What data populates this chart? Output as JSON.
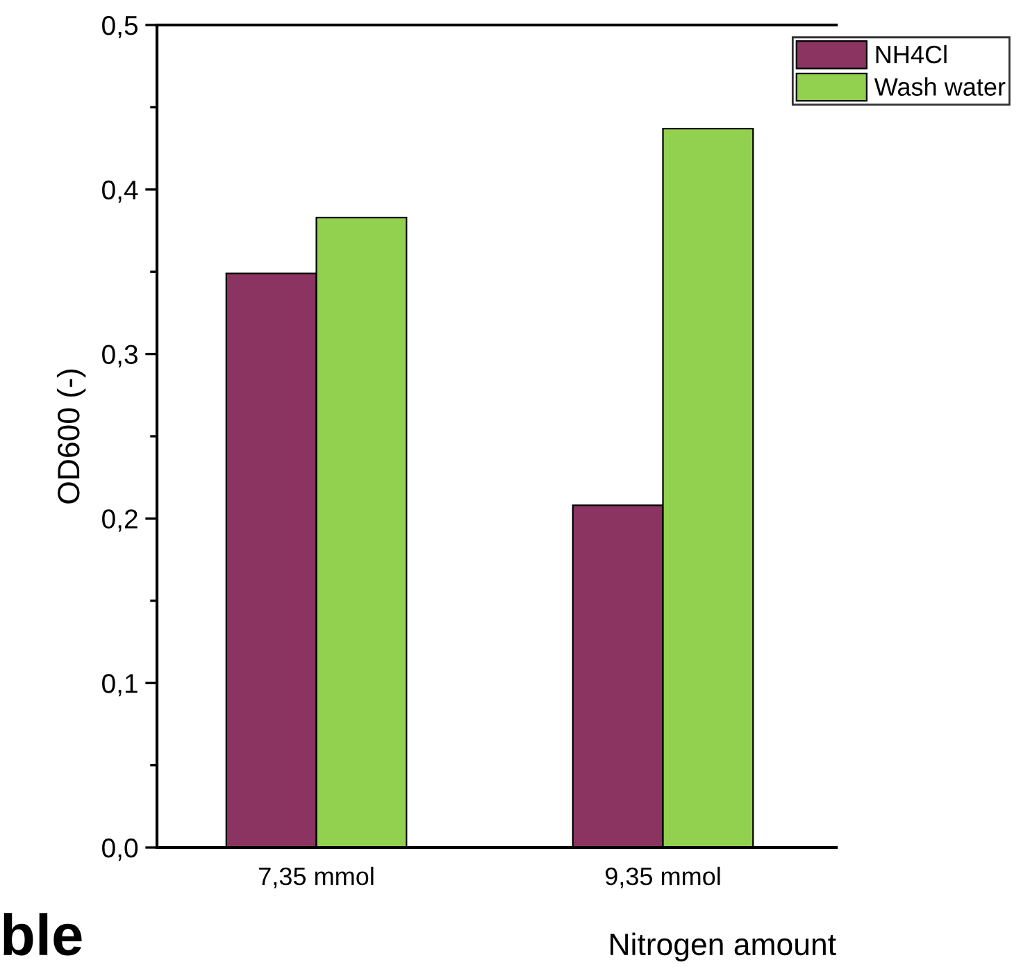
{
  "chart_data": {
    "type": "bar",
    "xlabel": "Nitrogen amount",
    "ylabel": "OD600 (-)",
    "categories": [
      "7,35 mmol",
      "9,35 mmol"
    ],
    "series": [
      {
        "name": "NH4Cl",
        "color": "#8b3462",
        "values": [
          0.349,
          0.208
        ]
      },
      {
        "name": "Wash water",
        "color": "#92d050",
        "values": [
          0.383,
          0.437
        ]
      }
    ],
    "ylim": [
      0,
      0.5
    ],
    "yticks": [
      {
        "value": 0,
        "label": "0,0"
      },
      {
        "value": 0.1,
        "label": "0,1"
      },
      {
        "value": 0.2,
        "label": "0,2"
      },
      {
        "value": 0.3,
        "label": "0,3"
      },
      {
        "value": 0.4,
        "label": "0,4"
      },
      {
        "value": 0.5,
        "label": "0,5"
      }
    ],
    "grid": false,
    "legend": "top right",
    "annotations": [
      "ble"
    ]
  }
}
